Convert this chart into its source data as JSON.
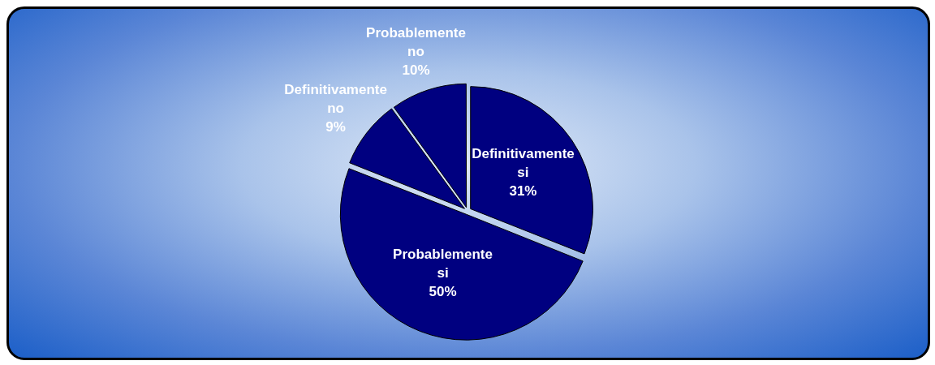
{
  "chart_data": {
    "type": "pie",
    "categories": [
      "Definitivamente si",
      "Probablemente si",
      "Definitivamente no",
      "Probablemente no"
    ],
    "values": [
      31,
      50,
      9,
      10
    ],
    "colors": [
      "#000080",
      "#000080",
      "#000080",
      "#000080"
    ],
    "value_labels": [
      "31%",
      "50%",
      "9%",
      "10%"
    ],
    "legend": false
  }
}
